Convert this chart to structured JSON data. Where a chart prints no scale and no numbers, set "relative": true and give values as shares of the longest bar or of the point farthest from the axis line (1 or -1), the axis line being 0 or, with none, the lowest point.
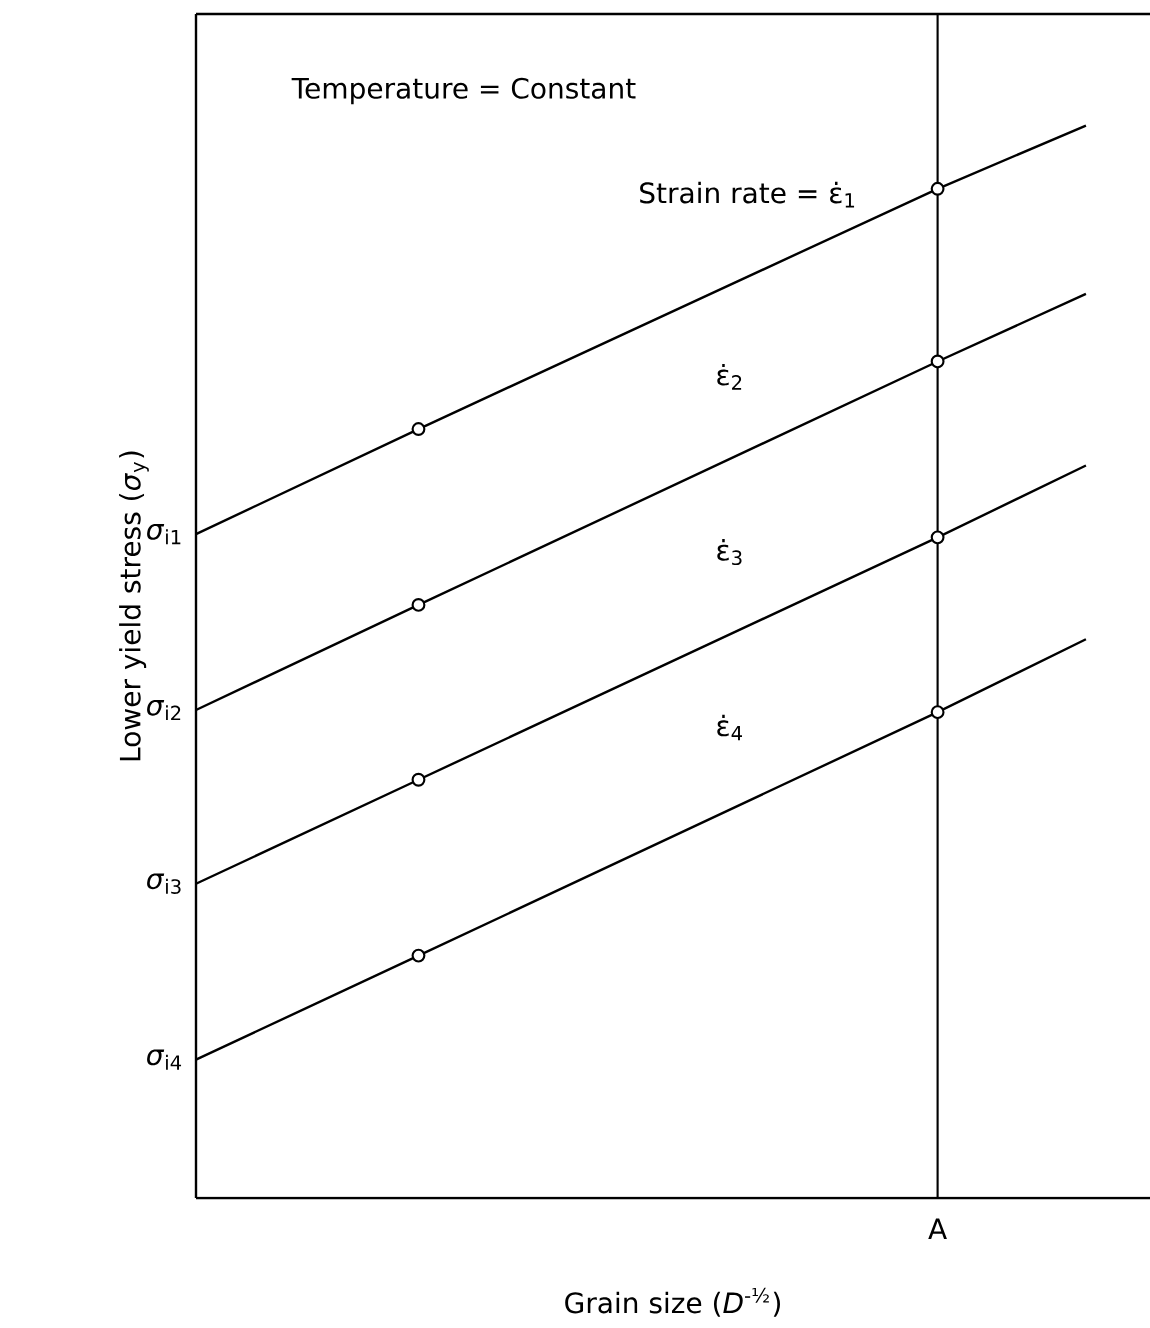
{
  "chart_data": {
    "type": "line",
    "relative": true,
    "xlabel": "Grain size  (*D*$^{-½}$)",
    "ylabel": "Lower yield stress  (*σ*$_{y}$)",
    "categories": [
      null,
      null,
      null,
      null,
      null,
      null,
      null,
      null,
      null,
      null,
      null,
      null,
      null
    ],
    "annotations": [
      "Temperature = Constant",
      "*σ*$_{i1}$",
      "*σ*$_{i2}$",
      "*σ*$_{i3}$",
      "*σ*$_{i4}$",
      "A"
    ],
    "series": [
      {
        "name": "Strain rate = ε̇$_{1}$",
        "color": "#000000",
        "values": [
          0.619,
          null,
          null,
          0.717,
          null,
          null,
          null,
          null,
          null,
          null,
          0.941,
          null,
          1
        ]
      },
      {
        "name": "ε̇$_{2}$",
        "color": "#000000",
        "values": [
          0.455,
          null,
          null,
          0.553,
          null,
          null,
          null,
          null,
          null,
          null,
          0.78,
          null,
          0.843
        ]
      },
      {
        "name": "ε̇$_{3}$",
        "color": "#000000",
        "values": [
          0.293,
          null,
          null,
          0.39,
          null,
          null,
          null,
          null,
          null,
          null,
          0.616,
          null,
          0.683
        ]
      },
      {
        "name": "ε̇$_{4}$",
        "color": "#000000",
        "values": [
          0.129,
          null,
          null,
          0.226,
          null,
          null,
          null,
          null,
          null,
          null,
          0.453,
          null,
          0.521
        ]
      }
    ],
    "marker": "circle"
  }
}
